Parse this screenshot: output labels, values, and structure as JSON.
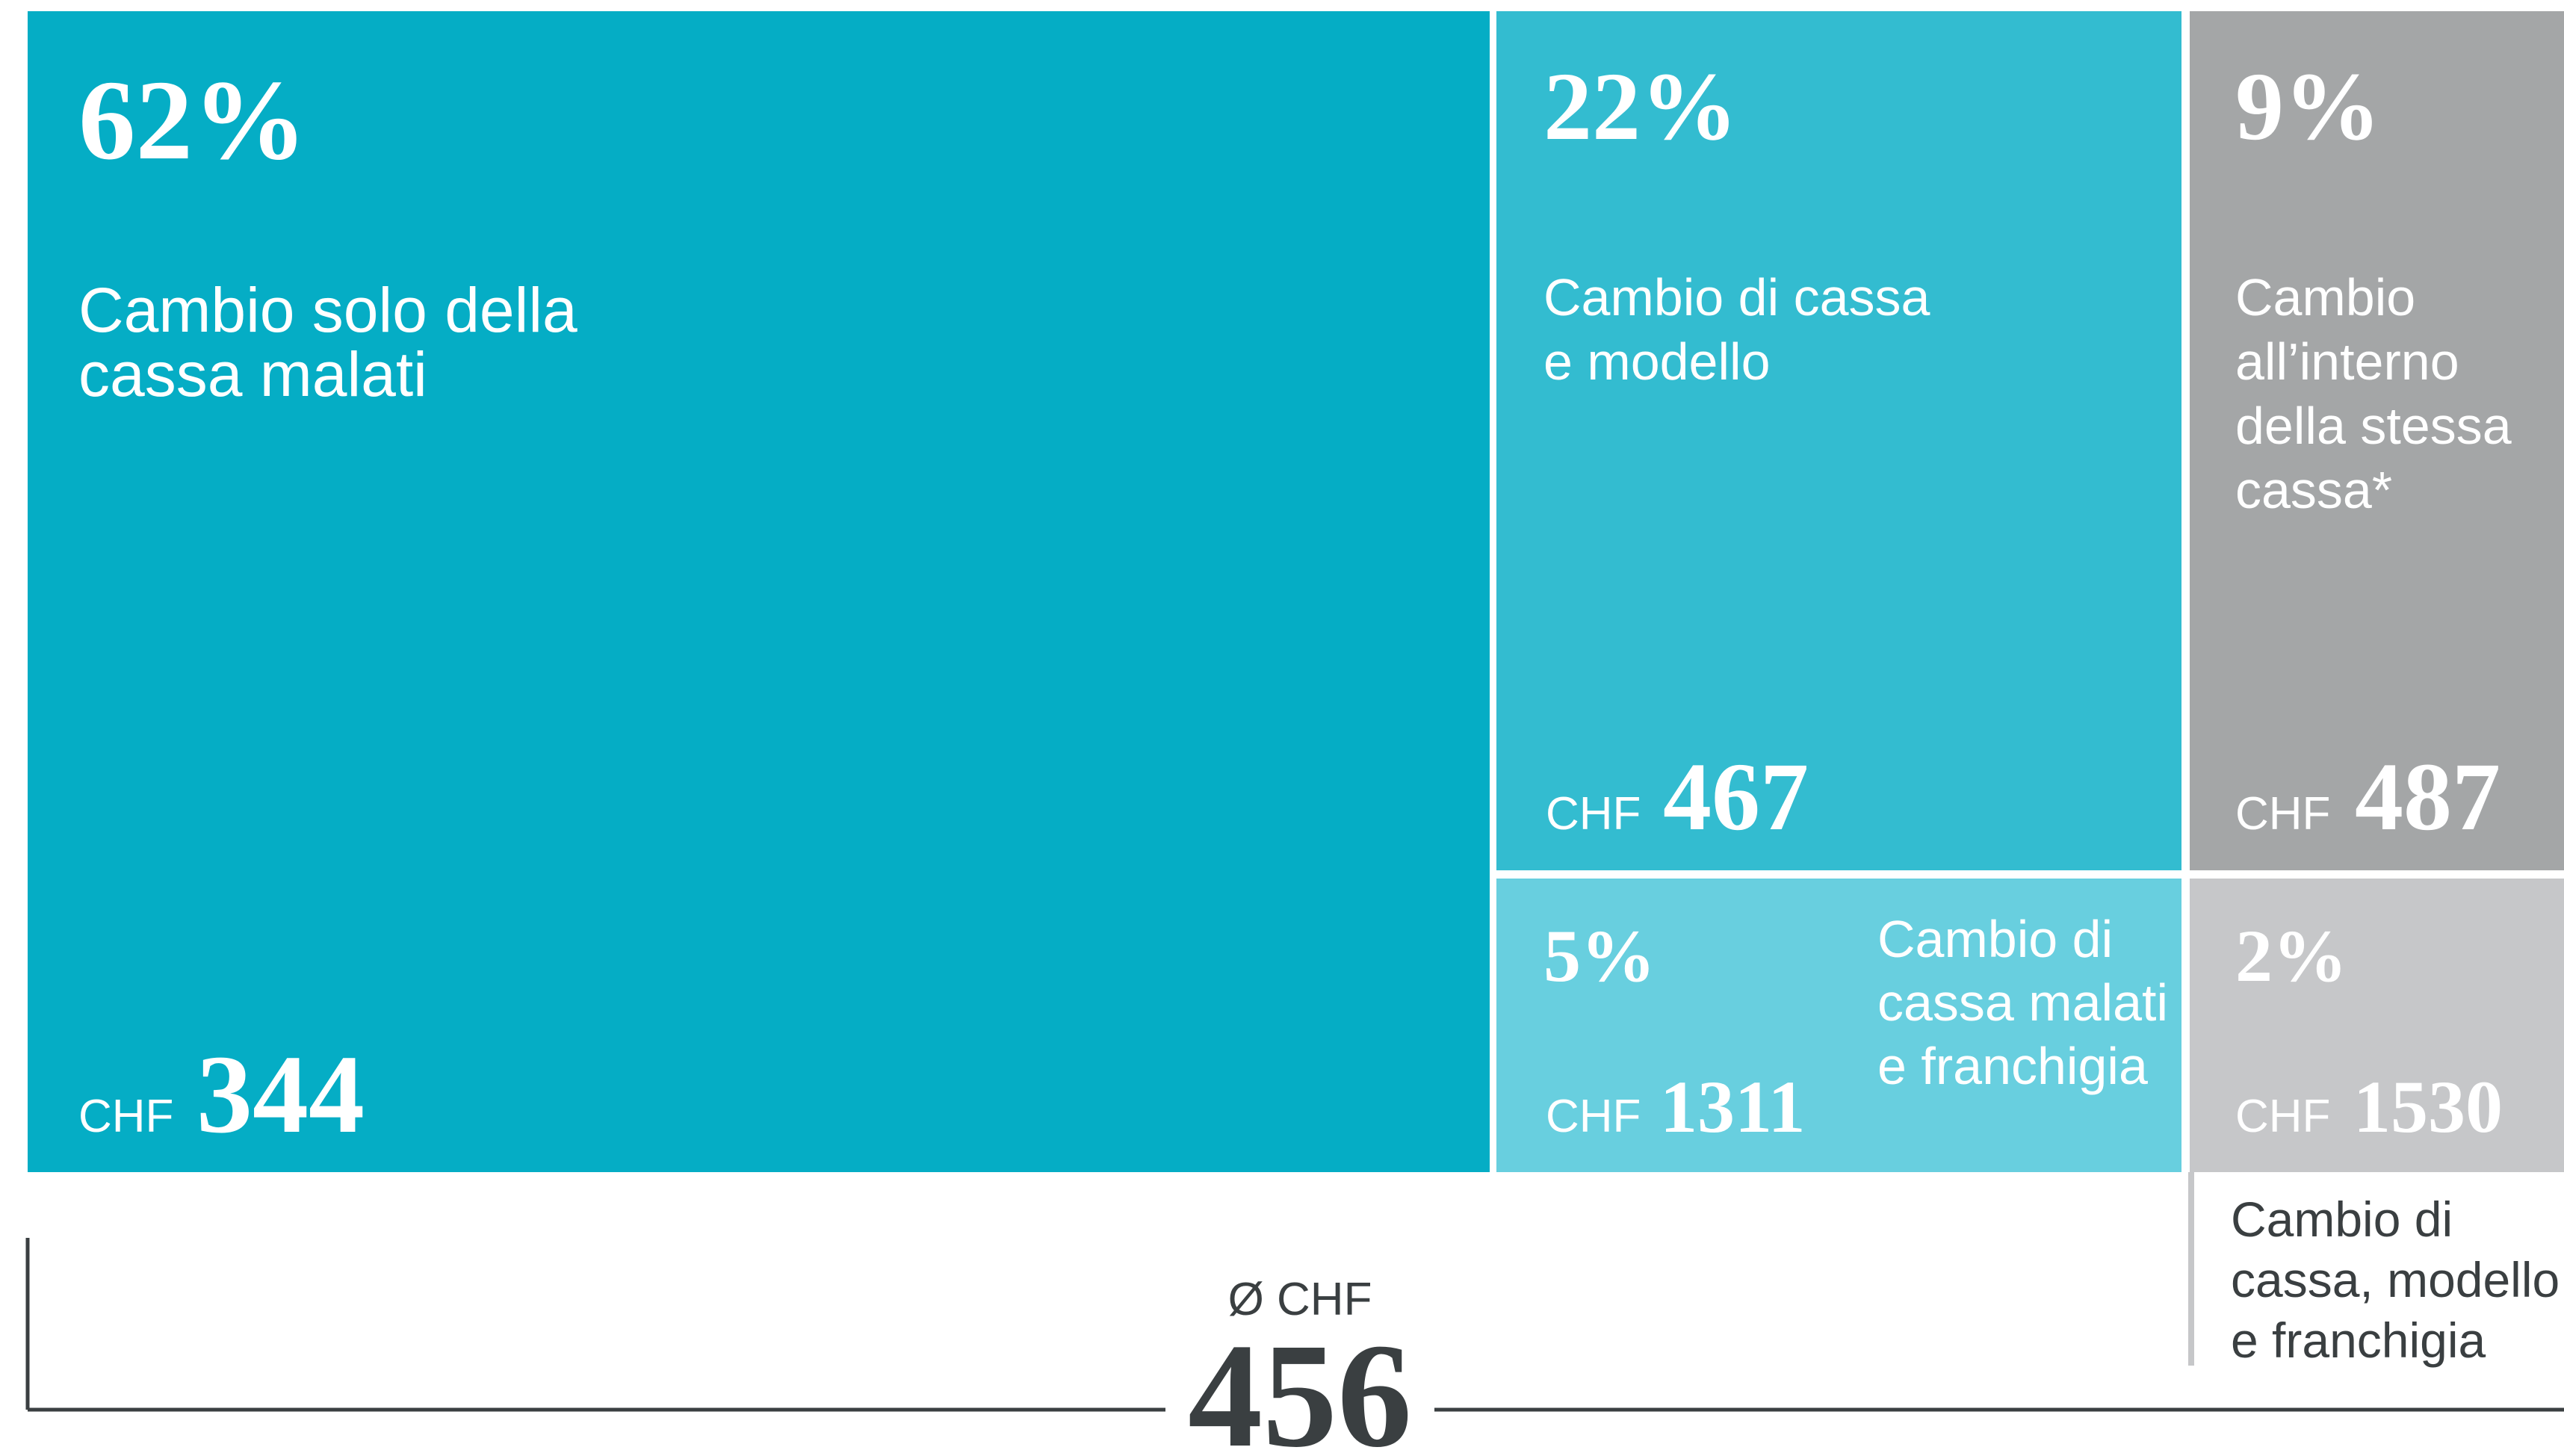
{
  "chart_data": {
    "type": "treemap",
    "labels": [
      [
        "Cambio solo della",
        "cassa malati"
      ],
      [
        "Cambio di cassa",
        "e modello"
      ],
      [
        "Cambio",
        "all’interno",
        "della stessa",
        "cassa*"
      ],
      [
        "Cambio di",
        "cassa malati",
        "e franchigia"
      ],
      [
        "Cambio di",
        "cassa, modello",
        "e franchigia"
      ]
    ],
    "values": [
      62,
      22,
      9,
      5,
      2
    ],
    "value_labels": [
      "62%",
      "22%",
      "9%",
      "5%",
      "2%"
    ],
    "amounts": [
      344,
      467,
      487,
      1311,
      1530
    ],
    "currency": "CHF",
    "colors": [
      "#05adc5",
      "#33bcd0",
      "#a4a6a7",
      "#68cfdf",
      "#c6c7c9"
    ],
    "average_label": "Ø CHF",
    "average": 456
  }
}
